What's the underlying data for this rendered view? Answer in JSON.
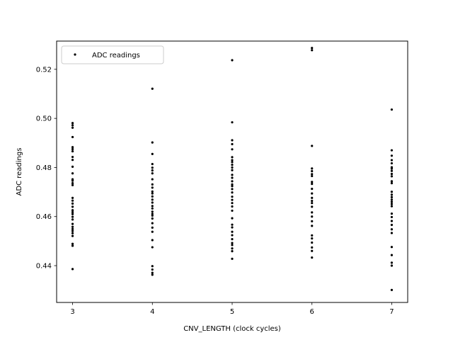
{
  "chart_data": {
    "type": "scatter",
    "title": "",
    "xlabel": "CNV_LENGTH (clock cycles)",
    "ylabel": "ADC readings",
    "xlim": [
      2.8,
      7.2
    ],
    "ylim": [
      0.425,
      0.5315
    ],
    "x_ticks": [
      3,
      4,
      5,
      6,
      7
    ],
    "x_tick_labels": [
      "3",
      "4",
      "5",
      "6",
      "7"
    ],
    "y_ticks": [
      0.44,
      0.46,
      0.48,
      0.5,
      0.52
    ],
    "y_tick_labels": [
      "0.44",
      "0.46",
      "0.48",
      "0.50",
      "0.52"
    ],
    "grid": false,
    "legend": {
      "position": "top-left",
      "entries": [
        "ADC readings"
      ]
    },
    "marker_color": "#000000",
    "series": [
      {
        "name": "ADC readings",
        "points": [
          [
            3,
            0.4981
          ],
          [
            3,
            0.4972
          ],
          [
            3,
            0.4962
          ],
          [
            3,
            0.4924
          ],
          [
            3,
            0.4883
          ],
          [
            3,
            0.4875
          ],
          [
            3,
            0.4866
          ],
          [
            3,
            0.4843
          ],
          [
            3,
            0.4831
          ],
          [
            3,
            0.4803
          ],
          [
            3,
            0.4776
          ],
          [
            3,
            0.4752
          ],
          [
            3,
            0.4746
          ],
          [
            3,
            0.4736
          ],
          [
            3,
            0.4728
          ],
          [
            3,
            0.4676
          ],
          [
            3,
            0.4665
          ],
          [
            3,
            0.4653
          ],
          [
            3,
            0.464
          ],
          [
            3,
            0.4626
          ],
          [
            3,
            0.4618
          ],
          [
            3,
            0.461
          ],
          [
            3,
            0.4599
          ],
          [
            3,
            0.4588
          ],
          [
            3,
            0.457
          ],
          [
            3,
            0.4558
          ],
          [
            3,
            0.4549
          ],
          [
            3,
            0.4541
          ],
          [
            3,
            0.4532
          ],
          [
            3,
            0.4521
          ],
          [
            3,
            0.4489
          ],
          [
            3,
            0.4481
          ],
          [
            3,
            0.4386
          ],
          [
            4,
            0.5121
          ],
          [
            4,
            0.4902
          ],
          [
            4,
            0.4855
          ],
          [
            4,
            0.4814
          ],
          [
            4,
            0.4799
          ],
          [
            4,
            0.4788
          ],
          [
            4,
            0.4776
          ],
          [
            4,
            0.4752
          ],
          [
            4,
            0.4731
          ],
          [
            4,
            0.4718
          ],
          [
            4,
            0.4702
          ],
          [
            4,
            0.4694
          ],
          [
            4,
            0.4682
          ],
          [
            4,
            0.4669
          ],
          [
            4,
            0.4657
          ],
          [
            4,
            0.4643
          ],
          [
            4,
            0.4633
          ],
          [
            4,
            0.462
          ],
          [
            4,
            0.4611
          ],
          [
            4,
            0.4604
          ],
          [
            4,
            0.4592
          ],
          [
            4,
            0.4573
          ],
          [
            4,
            0.4555
          ],
          [
            4,
            0.4538
          ],
          [
            4,
            0.4504
          ],
          [
            4,
            0.4475
          ],
          [
            4,
            0.4398
          ],
          [
            4,
            0.4384
          ],
          [
            4,
            0.4371
          ],
          [
            4,
            0.4363
          ],
          [
            5,
            0.5237
          ],
          [
            5,
            0.4984
          ],
          [
            5,
            0.4911
          ],
          [
            5,
            0.4895
          ],
          [
            5,
            0.4874
          ],
          [
            5,
            0.4842
          ],
          [
            5,
            0.483
          ],
          [
            5,
            0.4822
          ],
          [
            5,
            0.4811
          ],
          [
            5,
            0.48
          ],
          [
            5,
            0.4789
          ],
          [
            5,
            0.477
          ],
          [
            5,
            0.4758
          ],
          [
            5,
            0.4744
          ],
          [
            5,
            0.4731
          ],
          [
            5,
            0.4724
          ],
          [
            5,
            0.4712
          ],
          [
            5,
            0.4698
          ],
          [
            5,
            0.4681
          ],
          [
            5,
            0.4668
          ],
          [
            5,
            0.4655
          ],
          [
            5,
            0.4641
          ],
          [
            5,
            0.4624
          ],
          [
            5,
            0.4593
          ],
          [
            5,
            0.4567
          ],
          [
            5,
            0.4556
          ],
          [
            5,
            0.4538
          ],
          [
            5,
            0.4524
          ],
          [
            5,
            0.4508
          ],
          [
            5,
            0.4492
          ],
          [
            5,
            0.4484
          ],
          [
            5,
            0.447
          ],
          [
            5,
            0.4459
          ],
          [
            5,
            0.4428
          ],
          [
            6,
            0.5287
          ],
          [
            6,
            0.5278
          ],
          [
            6,
            0.4888
          ],
          [
            6,
            0.4796
          ],
          [
            6,
            0.4785
          ],
          [
            6,
            0.4773
          ],
          [
            6,
            0.4765
          ],
          [
            6,
            0.4741
          ],
          [
            6,
            0.4733
          ],
          [
            6,
            0.4713
          ],
          [
            6,
            0.4694
          ],
          [
            6,
            0.4676
          ],
          [
            6,
            0.4664
          ],
          [
            6,
            0.4655
          ],
          [
            6,
            0.464
          ],
          [
            6,
            0.4617
          ],
          [
            6,
            0.46
          ],
          [
            6,
            0.4581
          ],
          [
            6,
            0.4562
          ],
          [
            6,
            0.4523
          ],
          [
            6,
            0.4511
          ],
          [
            6,
            0.4494
          ],
          [
            6,
            0.4474
          ],
          [
            6,
            0.446
          ],
          [
            6,
            0.4433
          ],
          [
            7,
            0.5036
          ],
          [
            7,
            0.487
          ],
          [
            7,
            0.4848
          ],
          [
            7,
            0.483
          ],
          [
            7,
            0.4817
          ],
          [
            7,
            0.4801
          ],
          [
            7,
            0.4795
          ],
          [
            7,
            0.4786
          ],
          [
            7,
            0.4774
          ],
          [
            7,
            0.4764
          ],
          [
            7,
            0.4744
          ],
          [
            7,
            0.4736
          ],
          [
            7,
            0.4701
          ],
          [
            7,
            0.4689
          ],
          [
            7,
            0.4679
          ],
          [
            7,
            0.4669
          ],
          [
            7,
            0.466
          ],
          [
            7,
            0.4651
          ],
          [
            7,
            0.4642
          ],
          [
            7,
            0.4612
          ],
          [
            7,
            0.4598
          ],
          [
            7,
            0.4582
          ],
          [
            7,
            0.4566
          ],
          [
            7,
            0.4548
          ],
          [
            7,
            0.4533
          ],
          [
            7,
            0.4476
          ],
          [
            7,
            0.4443
          ],
          [
            7,
            0.4412
          ],
          [
            7,
            0.44
          ],
          [
            7,
            0.4301
          ]
        ]
      }
    ]
  }
}
